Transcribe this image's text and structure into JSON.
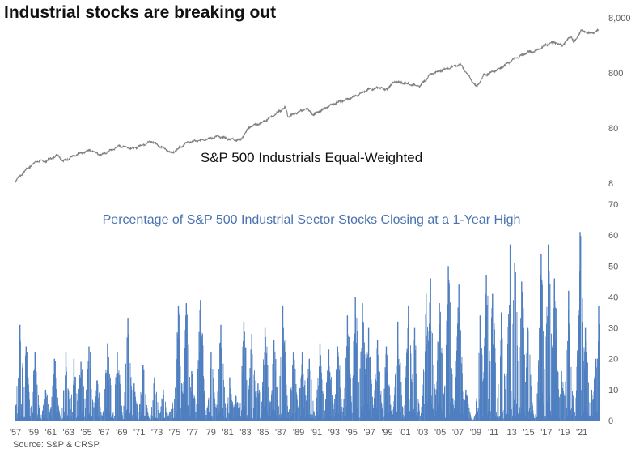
{
  "title": "Industrial stocks are breaking out",
  "source": "Source: S&P & CRSP",
  "colors": {
    "line": "#7f7f7f",
    "bars": "#4f7fc0",
    "title": "#111111",
    "bottom_label": "#4a72b0"
  },
  "chart_data": [
    {
      "type": "line",
      "title": "S&P 500 Industrials Equal-Weighted",
      "yscale": "log",
      "ylim": [
        8,
        8000
      ],
      "yticks": [
        8,
        80,
        800,
        8000
      ],
      "ytick_labels": [
        "8",
        "80",
        "800",
        "8,000"
      ],
      "series": [
        {
          "x": [
            1957.0,
            1958.5,
            1959.5,
            1960.5,
            1961.9,
            1962.5,
            1963.5,
            1965.5,
            1966.8,
            1968.9,
            1970.4,
            1972.5,
            1974.8,
            1976.5,
            1978.0,
            1980.0,
            1981.5,
            1982.5,
            1983.6,
            1985.0,
            1987.6,
            1987.9,
            1990.0,
            1990.8,
            1993.0,
            1995.0,
            1997.0,
            1998.5,
            1998.8,
            2000.0,
            2002.8,
            2004.0,
            2005.5,
            2007.4,
            2009.2,
            2010.0,
            2011.2,
            2012.0,
            2013.5,
            2015.0,
            2015.9,
            2017.0,
            2018.0,
            2018.9,
            2019.9,
            2020.2,
            2021.0,
            2022.0,
            2023.0
          ],
          "y": [
            8.5,
            15,
            20,
            20,
            26,
            20,
            24,
            32,
            26,
            38,
            34,
            46,
            28,
            44,
            48,
            56,
            50,
            48,
            85,
            100,
            190,
            130,
            180,
            140,
            220,
            280,
            400,
            440,
            380,
            560,
            460,
            760,
            920,
            1150,
            440,
            720,
            860,
            1000,
            1450,
            1900,
            2000,
            2550,
            2900,
            2500,
            3800,
            2800,
            4700,
            4200,
            4700
          ]
        }
      ]
    },
    {
      "type": "bar",
      "title": "Percentage of S&P 500 Industrial Sector Stocks Closing at a 1-Year High",
      "ylim": [
        0,
        70
      ],
      "yticks": [
        0,
        10,
        20,
        30,
        40,
        50,
        60,
        70
      ],
      "xlim": [
        1957.0,
        2023.1
      ],
      "xtick_labels": [
        "'57",
        "'59",
        "'61",
        "'63",
        "'65",
        "'67",
        "'69",
        "'71",
        "'73",
        "'75",
        "'77",
        "'79",
        "'81",
        "'83",
        "'85",
        "'87",
        "'89",
        "'91",
        "'93",
        "'95",
        "'97",
        "'99",
        "'01",
        "'03",
        "'05",
        "'07",
        "'09",
        "'11",
        "'13",
        "'15",
        "'17",
        "'19",
        "'21"
      ],
      "peaks": [
        {
          "x": 1957.6,
          "y": 31
        },
        {
          "x": 1958.3,
          "y": 24
        },
        {
          "x": 1959.3,
          "y": 22
        },
        {
          "x": 1960.5,
          "y": 10
        },
        {
          "x": 1961.5,
          "y": 20
        },
        {
          "x": 1962.8,
          "y": 22
        },
        {
          "x": 1963.7,
          "y": 20
        },
        {
          "x": 1964.5,
          "y": 19
        },
        {
          "x": 1965.4,
          "y": 24
        },
        {
          "x": 1966.3,
          "y": 13
        },
        {
          "x": 1967.5,
          "y": 25
        },
        {
          "x": 1968.6,
          "y": 22
        },
        {
          "x": 1969.8,
          "y": 33
        },
        {
          "x": 1970.5,
          "y": 12
        },
        {
          "x": 1971.5,
          "y": 18
        },
        {
          "x": 1972.8,
          "y": 14
        },
        {
          "x": 1973.8,
          "y": 10
        },
        {
          "x": 1974.8,
          "y": 6
        },
        {
          "x": 1975.5,
          "y": 37
        },
        {
          "x": 1976.4,
          "y": 38
        },
        {
          "x": 1977.0,
          "y": 16
        },
        {
          "x": 1978.0,
          "y": 39
        },
        {
          "x": 1979.2,
          "y": 22
        },
        {
          "x": 1980.3,
          "y": 31
        },
        {
          "x": 1981.3,
          "y": 14
        },
        {
          "x": 1982.0,
          "y": 8
        },
        {
          "x": 1982.9,
          "y": 32
        },
        {
          "x": 1983.8,
          "y": 28
        },
        {
          "x": 1984.5,
          "y": 12
        },
        {
          "x": 1985.3,
          "y": 30
        },
        {
          "x": 1986.3,
          "y": 26
        },
        {
          "x": 1987.3,
          "y": 37
        },
        {
          "x": 1988.5,
          "y": 22
        },
        {
          "x": 1989.5,
          "y": 22
        },
        {
          "x": 1990.3,
          "y": 20
        },
        {
          "x": 1991.5,
          "y": 25
        },
        {
          "x": 1992.5,
          "y": 23
        },
        {
          "x": 1993.5,
          "y": 24
        },
        {
          "x": 1994.6,
          "y": 34
        },
        {
          "x": 1995.5,
          "y": 40
        },
        {
          "x": 1996.3,
          "y": 38
        },
        {
          "x": 1997.0,
          "y": 30
        },
        {
          "x": 1998.0,
          "y": 26
        },
        {
          "x": 1999.0,
          "y": 24
        },
        {
          "x": 2000.3,
          "y": 32
        },
        {
          "x": 2001.5,
          "y": 37
        },
        {
          "x": 2002.2,
          "y": 30
        },
        {
          "x": 2003.5,
          "y": 41
        },
        {
          "x": 2004.0,
          "y": 46
        },
        {
          "x": 2005.0,
          "y": 38
        },
        {
          "x": 2006.0,
          "y": 50
        },
        {
          "x": 2007.2,
          "y": 44
        },
        {
          "x": 2008.0,
          "y": 10
        },
        {
          "x": 2009.6,
          "y": 34
        },
        {
          "x": 2010.3,
          "y": 47
        },
        {
          "x": 2011.0,
          "y": 41
        },
        {
          "x": 2012.0,
          "y": 35
        },
        {
          "x": 2013.0,
          "y": 57
        },
        {
          "x": 2013.5,
          "y": 51
        },
        {
          "x": 2014.3,
          "y": 45
        },
        {
          "x": 2015.0,
          "y": 30
        },
        {
          "x": 2016.5,
          "y": 54
        },
        {
          "x": 2017.3,
          "y": 57
        },
        {
          "x": 2018.0,
          "y": 46
        },
        {
          "x": 2018.8,
          "y": 16
        },
        {
          "x": 2019.6,
          "y": 42
        },
        {
          "x": 2020.9,
          "y": 61
        },
        {
          "x": 2021.5,
          "y": 30
        },
        {
          "x": 2022.2,
          "y": 10
        },
        {
          "x": 2022.7,
          "y": 20
        },
        {
          "x": 2023.0,
          "y": 37
        }
      ]
    }
  ]
}
